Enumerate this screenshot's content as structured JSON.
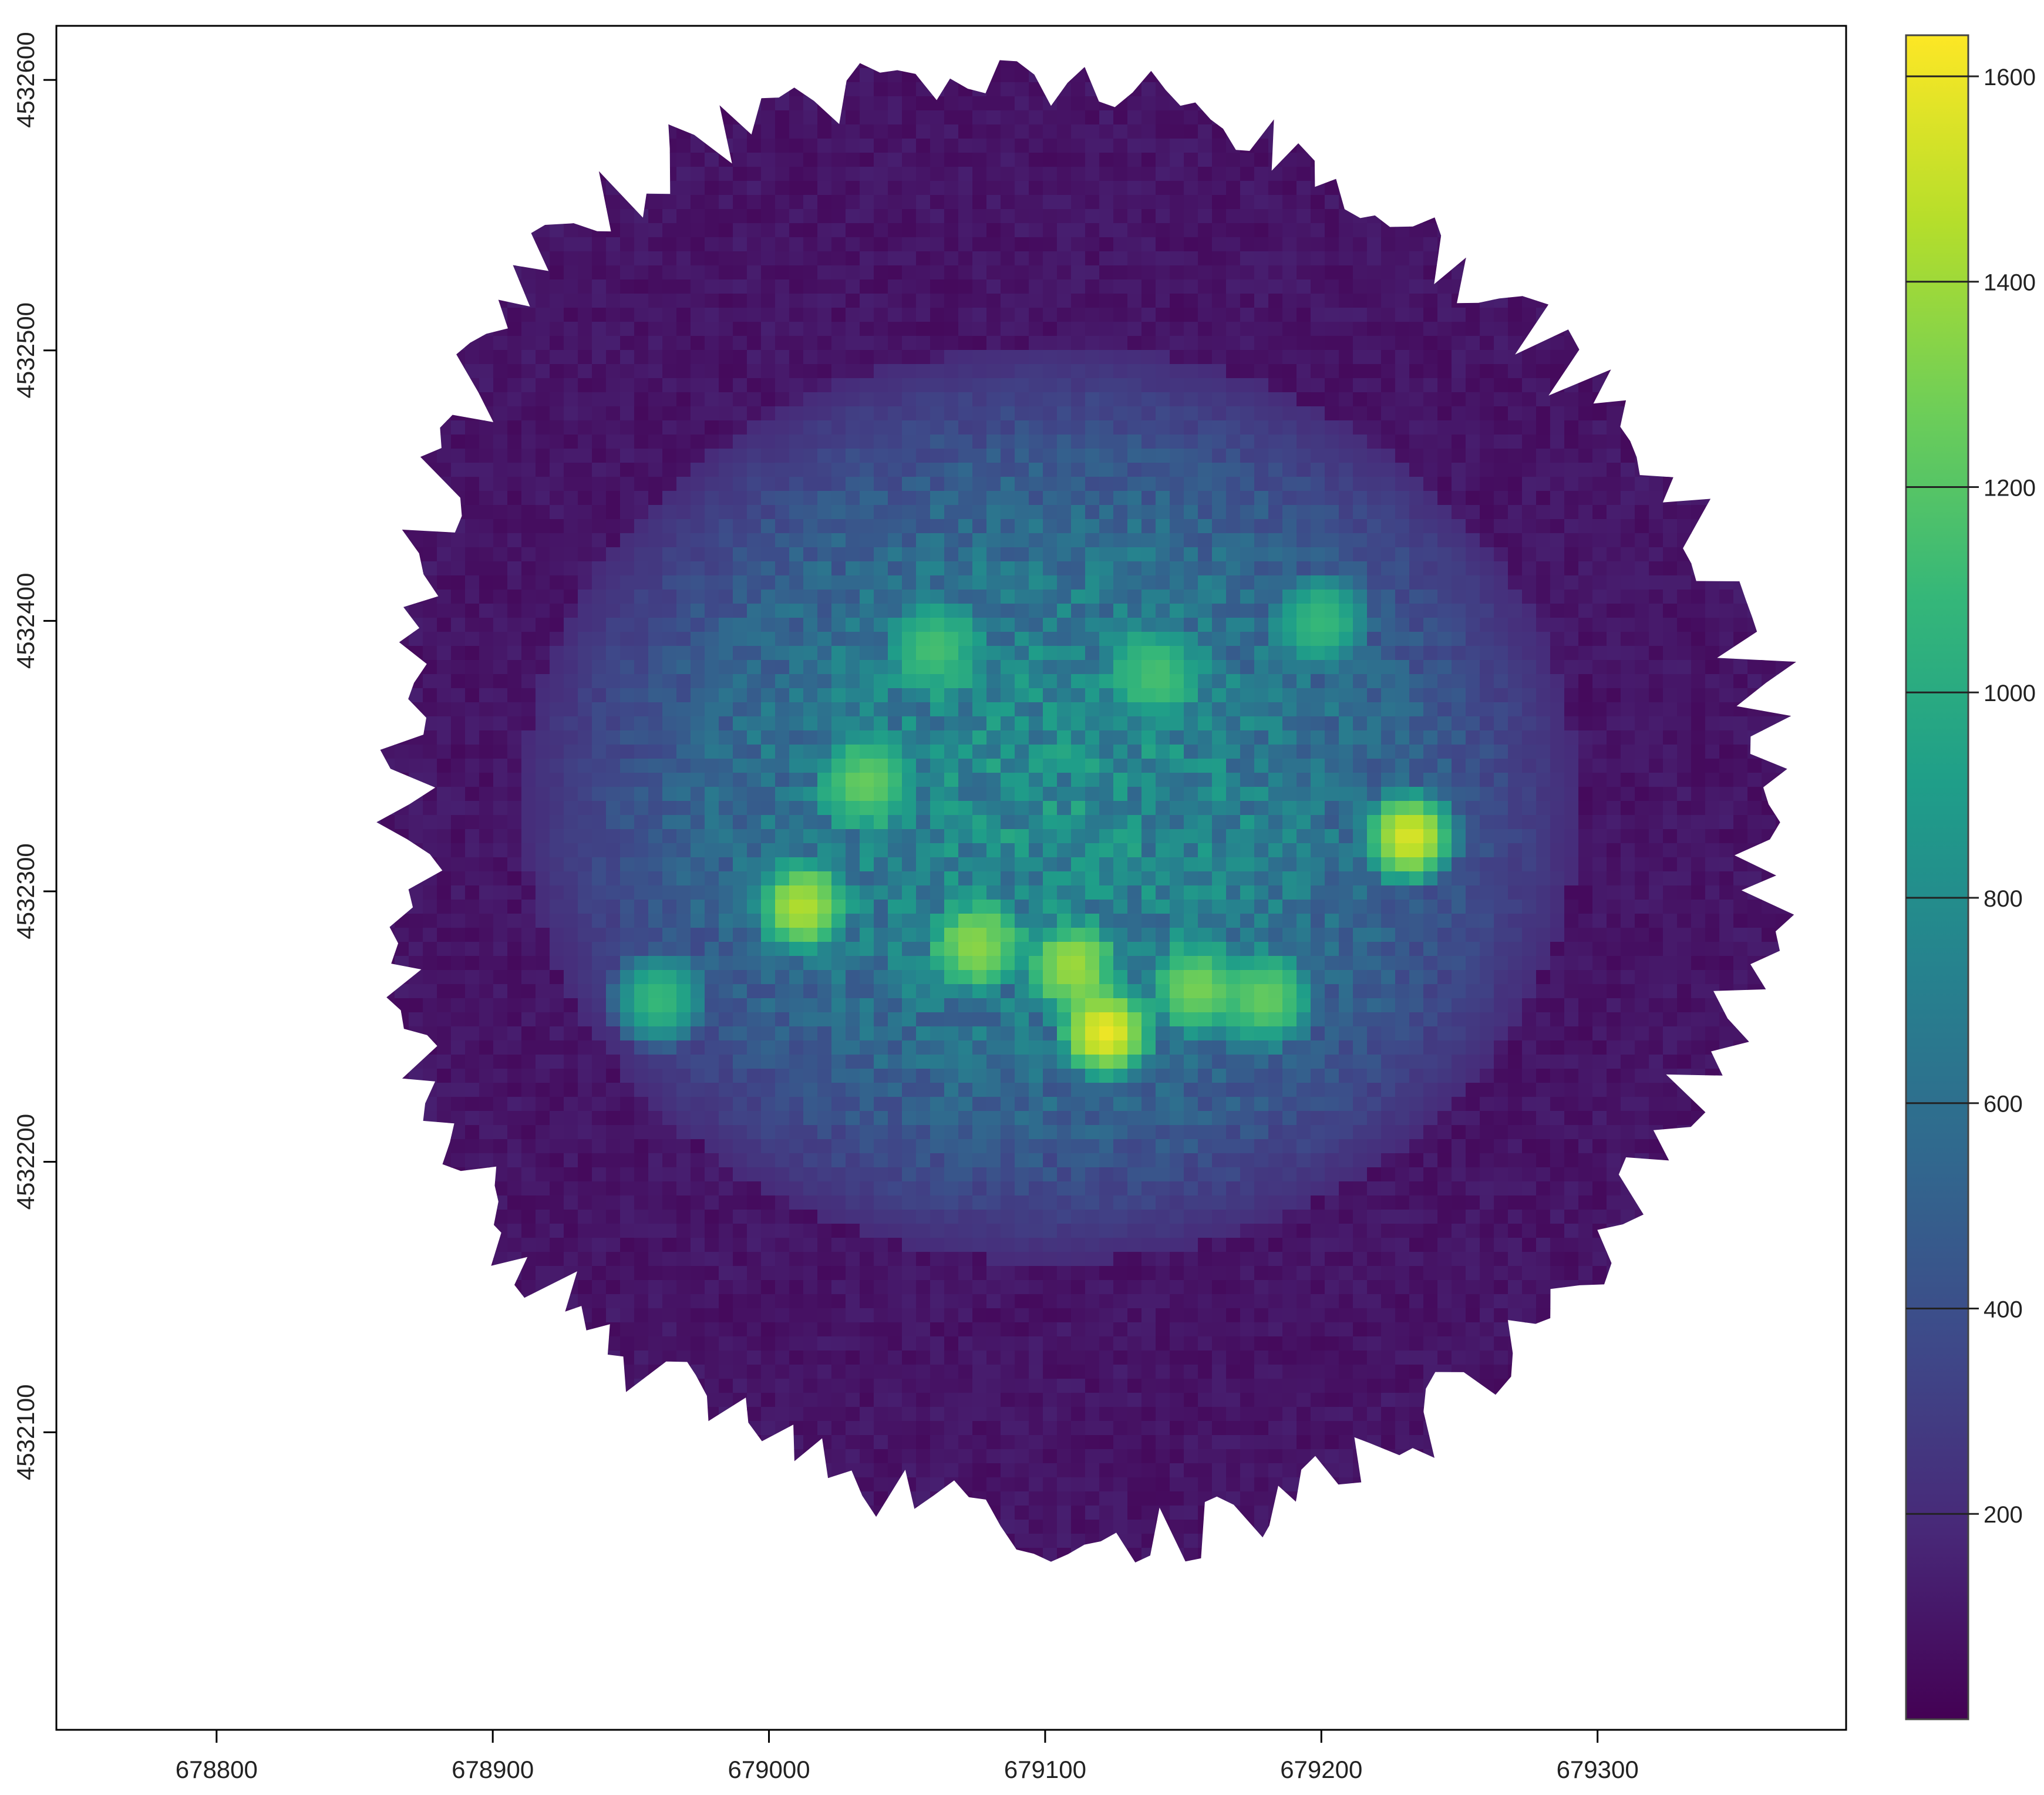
{
  "chart_data": {
    "type": "heatmap",
    "title": "",
    "xlabel": "",
    "ylabel": "",
    "xlim": [
      678742,
      679390
    ],
    "ylim": [
      4531990,
      4532620
    ],
    "x_ticks": [
      678800,
      678900,
      679000,
      679100,
      679200,
      679300
    ],
    "x_tick_labels": [
      "678800",
      "678900",
      "679000",
      "679100",
      "679200",
      "679300"
    ],
    "y_ticks": [
      4532100,
      4532200,
      4532300,
      4532400,
      4532500,
      4532600
    ],
    "y_tick_labels": [
      "4532100",
      "4532200",
      "4532300",
      "4532400",
      "4532500",
      "4532600"
    ],
    "colorbar": {
      "colormap": "viridis",
      "range": [
        0,
        1640
      ],
      "ticks": [
        200,
        400,
        600,
        800,
        1000,
        1200,
        1400,
        1600
      ],
      "tick_labels": [
        "200",
        "400",
        "600",
        "800",
        "1000",
        "1200",
        "1400",
        "1600"
      ],
      "colors": [
        "#440154",
        "#482878",
        "#3e4989",
        "#31688e",
        "#26828e",
        "#1f9e89",
        "#35b779",
        "#6ece58",
        "#b5de2b",
        "#fde725"
      ]
    },
    "raster": {
      "center": [
        679100,
        4532330
      ],
      "core_value_range": [
        550,
        1000
      ],
      "hotspot_max": 1640,
      "background_value_range": [
        0,
        200
      ],
      "hotspots": [
        {
          "x": 679122,
          "y": 4532248,
          "value": 1600
        },
        {
          "x": 679232,
          "y": 4532320,
          "value": 1550
        },
        {
          "x": 679012,
          "y": 4532294,
          "value": 1450
        },
        {
          "x": 679075,
          "y": 4532280,
          "value": 1350
        },
        {
          "x": 679110,
          "y": 4532272,
          "value": 1400
        },
        {
          "x": 679155,
          "y": 4532264,
          "value": 1300
        },
        {
          "x": 679035,
          "y": 4532340,
          "value": 1250
        },
        {
          "x": 679180,
          "y": 4532260,
          "value": 1250
        },
        {
          "x": 679060,
          "y": 4532390,
          "value": 1150
        },
        {
          "x": 678960,
          "y": 4532260,
          "value": 1100
        },
        {
          "x": 679140,
          "y": 4532380,
          "value": 1150
        },
        {
          "x": 679200,
          "y": 4532400,
          "value": 1100
        }
      ]
    }
  }
}
